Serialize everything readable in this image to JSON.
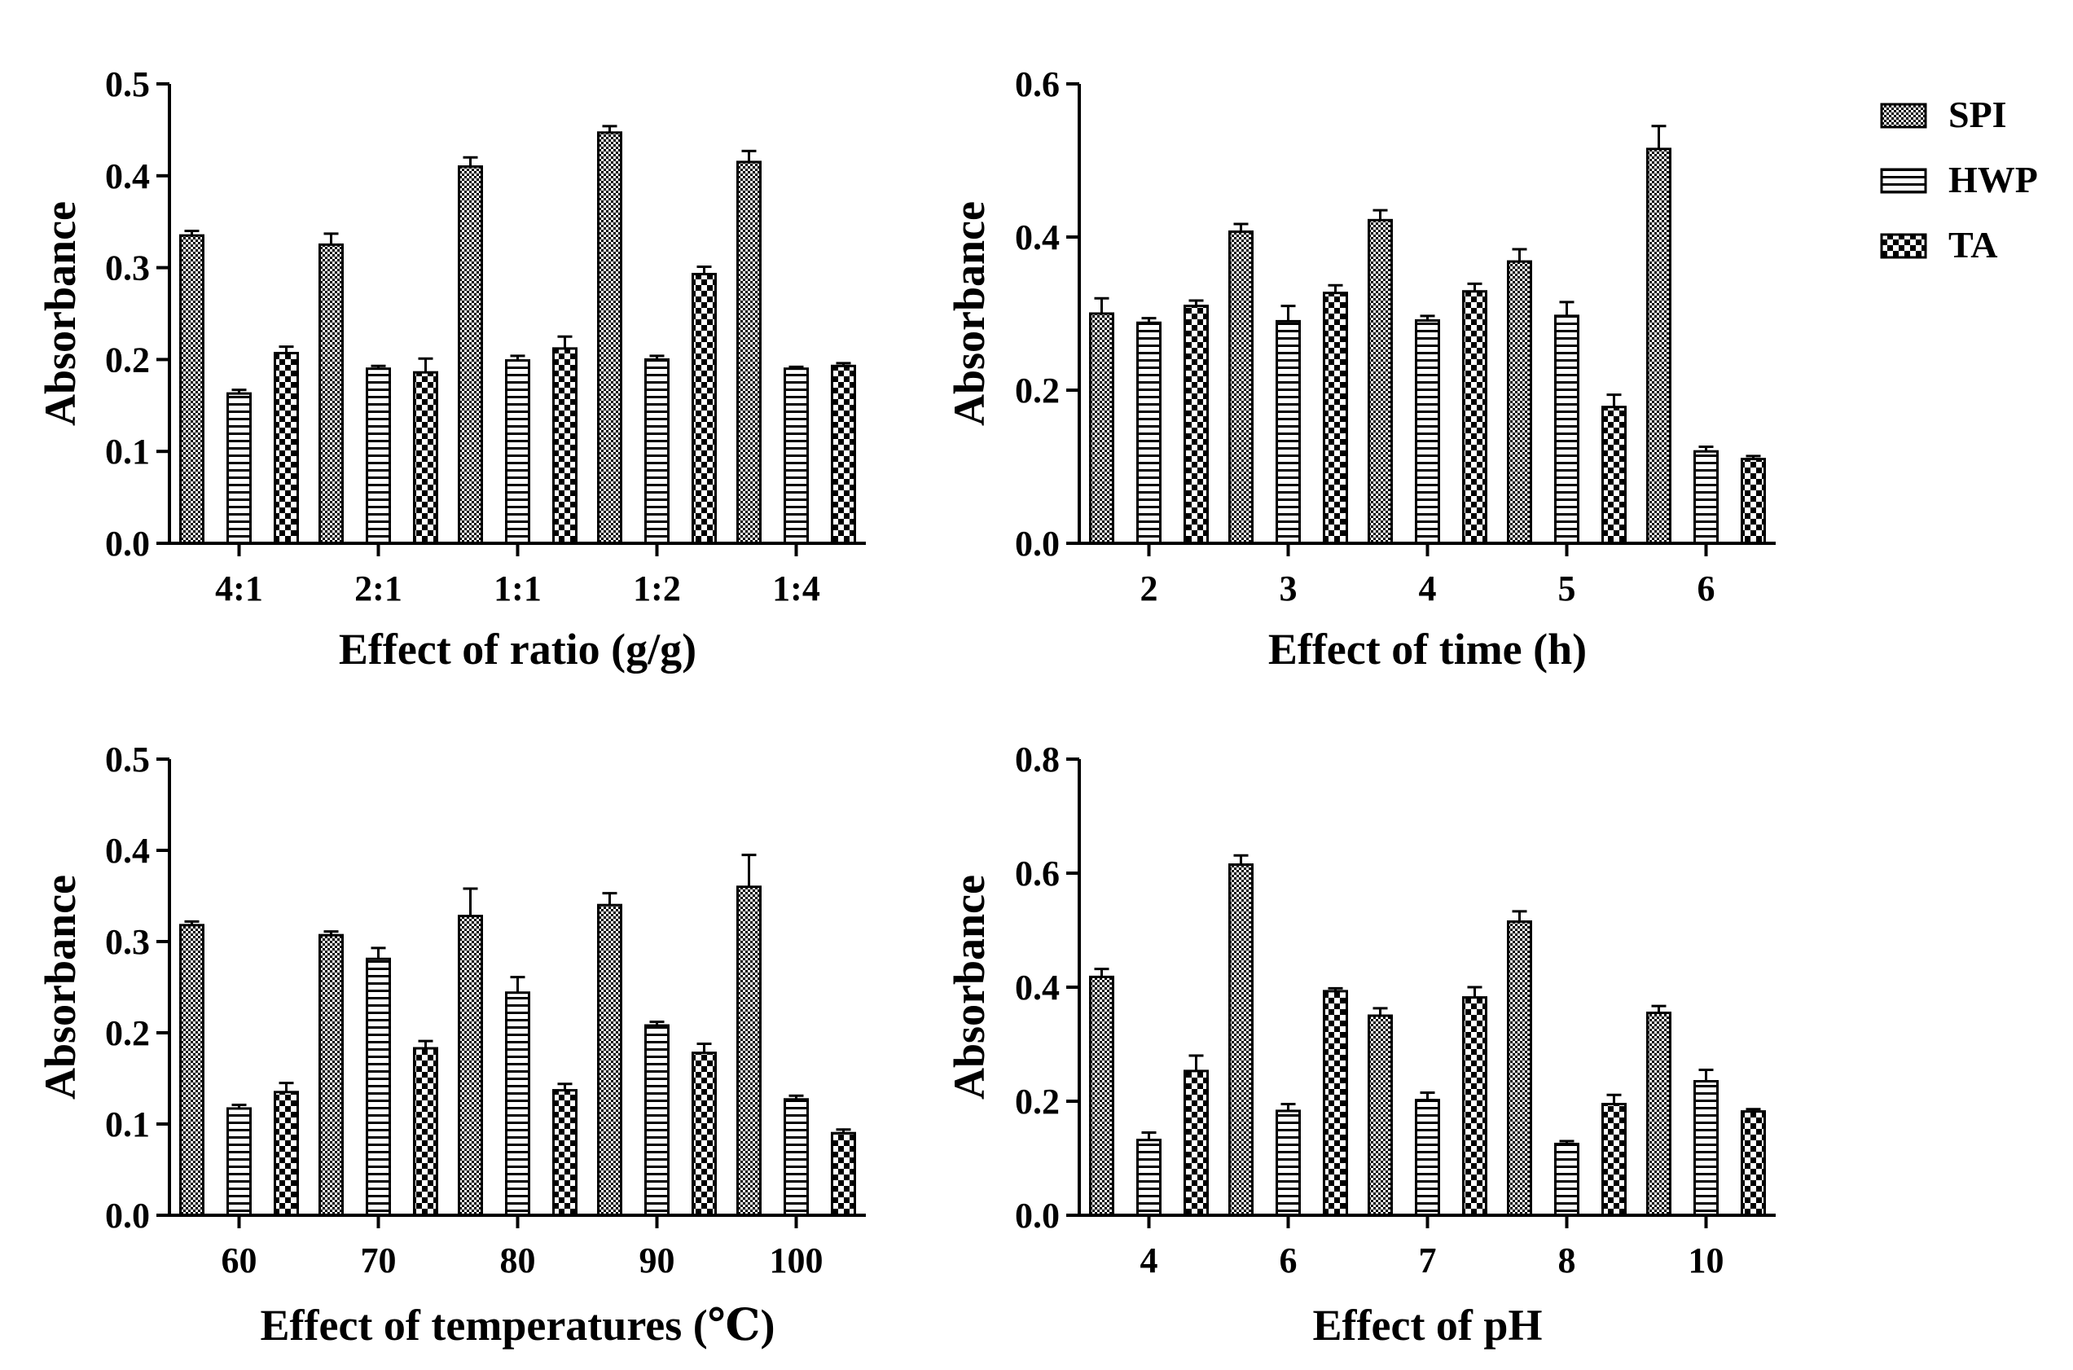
{
  "legend": [
    {
      "name": "SPI",
      "pattern": "checker-fine"
    },
    {
      "name": "HWP",
      "pattern": "horizontal-lines"
    },
    {
      "name": "TA",
      "pattern": "checker-coarse"
    }
  ],
  "chart_data": [
    {
      "type": "bar",
      "title": "",
      "xlabel": "Effect of ratio (g/g)",
      "ylabel": "Absorbance",
      "categories": [
        "4:1",
        "2:1",
        "1:1",
        "1:2",
        "1:4"
      ],
      "ylim": [
        0,
        0.5
      ],
      "yticks": [
        "0.0",
        "0.1",
        "0.2",
        "0.3",
        "0.4",
        "0.5"
      ],
      "series": [
        {
          "name": "SPI",
          "values": [
            0.335,
            0.325,
            0.41,
            0.447,
            0.415
          ],
          "errors": [
            0.005,
            0.012,
            0.01,
            0.007,
            0.012
          ]
        },
        {
          "name": "HWP",
          "values": [
            0.163,
            0.19,
            0.199,
            0.2,
            0.19
          ],
          "errors": [
            0.004,
            0.003,
            0.005,
            0.004,
            0.002
          ]
        },
        {
          "name": "TA",
          "values": [
            0.207,
            0.186,
            0.212,
            0.293,
            0.193
          ],
          "errors": [
            0.007,
            0.015,
            0.013,
            0.008,
            0.003
          ]
        }
      ]
    },
    {
      "type": "bar",
      "title": "",
      "xlabel": "Effect of time (h)",
      "ylabel": "Absorbance",
      "categories": [
        "2",
        "3",
        "4",
        "5",
        "6"
      ],
      "ylim": [
        0,
        0.6
      ],
      "yticks": [
        "0.0",
        "0.2",
        "0.4",
        "0.6"
      ],
      "series": [
        {
          "name": "SPI",
          "values": [
            0.3,
            0.407,
            0.422,
            0.368,
            0.515
          ],
          "errors": [
            0.02,
            0.01,
            0.013,
            0.016,
            0.03
          ]
        },
        {
          "name": "HWP",
          "values": [
            0.288,
            0.29,
            0.291,
            0.297,
            0.12
          ],
          "errors": [
            0.006,
            0.02,
            0.006,
            0.018,
            0.006
          ]
        },
        {
          "name": "TA",
          "values": [
            0.31,
            0.327,
            0.329,
            0.178,
            0.11
          ],
          "errors": [
            0.007,
            0.01,
            0.01,
            0.016,
            0.004
          ]
        }
      ]
    },
    {
      "type": "bar",
      "title": "",
      "xlabel": "Effect of temperatures (℃)",
      "ylabel": "Absorbance",
      "categories": [
        "60",
        "70",
        "80",
        "90",
        "100"
      ],
      "ylim": [
        0,
        0.5
      ],
      "yticks": [
        "0.0",
        "0.1",
        "0.2",
        "0.3",
        "0.4",
        "0.5"
      ],
      "series": [
        {
          "name": "SPI",
          "values": [
            0.318,
            0.307,
            0.328,
            0.34,
            0.36
          ],
          "errors": [
            0.004,
            0.004,
            0.03,
            0.013,
            0.035
          ]
        },
        {
          "name": "HWP",
          "values": [
            0.117,
            0.281,
            0.244,
            0.208,
            0.127
          ],
          "errors": [
            0.004,
            0.012,
            0.017,
            0.004,
            0.004
          ]
        },
        {
          "name": "TA",
          "values": [
            0.135,
            0.183,
            0.137,
            0.178,
            0.09
          ],
          "errors": [
            0.01,
            0.008,
            0.007,
            0.01,
            0.004
          ]
        }
      ]
    },
    {
      "type": "bar",
      "title": "",
      "xlabel": "Effect of pH",
      "ylabel": "Absorbance",
      "categories": [
        "4",
        "6",
        "7",
        "8",
        "10"
      ],
      "ylim": [
        0,
        0.8
      ],
      "yticks": [
        "0.0",
        "0.2",
        "0.4",
        "0.6",
        "0.8"
      ],
      "series": [
        {
          "name": "SPI",
          "values": [
            0.418,
            0.615,
            0.35,
            0.515,
            0.355
          ],
          "errors": [
            0.014,
            0.016,
            0.013,
            0.018,
            0.012
          ]
        },
        {
          "name": "HWP",
          "values": [
            0.132,
            0.183,
            0.202,
            0.125,
            0.235
          ],
          "errors": [
            0.013,
            0.012,
            0.013,
            0.005,
            0.02
          ]
        },
        {
          "name": "TA",
          "values": [
            0.253,
            0.393,
            0.382,
            0.195,
            0.182
          ],
          "errors": [
            0.027,
            0.005,
            0.018,
            0.016,
            0.004
          ]
        }
      ]
    }
  ]
}
